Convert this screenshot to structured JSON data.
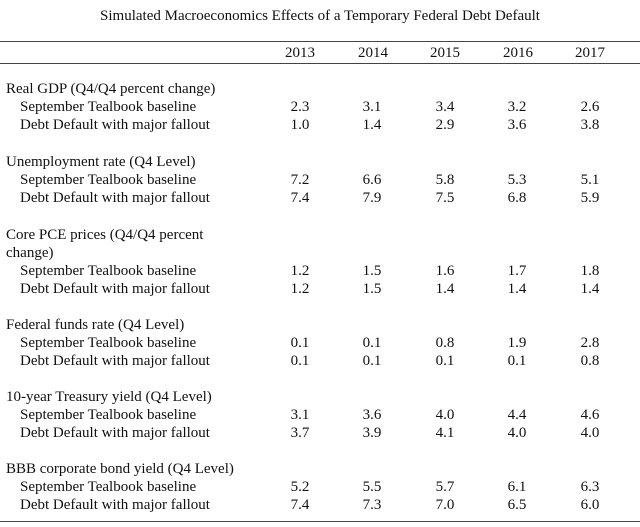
{
  "title": "Simulated Macroeconomics Effects of a Temporary Federal Debt Default",
  "years": [
    "2013",
    "2014",
    "2015",
    "2016",
    "2017"
  ],
  "groups": [
    {
      "heading": "Real GDP (Q4/Q4 percent change)",
      "rows": [
        {
          "label": "September Tealbook baseline",
          "values": [
            "2.3",
            "3.1",
            "3.4",
            "3.2",
            "2.6"
          ]
        },
        {
          "label": "Debt Default with major fallout",
          "values": [
            "1.0",
            "1.4",
            "2.9",
            "3.6",
            "3.8"
          ]
        }
      ]
    },
    {
      "heading": "Unemployment rate (Q4 Level)",
      "rows": [
        {
          "label": "September Tealbook baseline",
          "values": [
            "7.2",
            "6.6",
            "5.8",
            "5.3",
            "5.1"
          ]
        },
        {
          "label": "Debt Default with major fallout",
          "values": [
            "7.4",
            "7.9",
            "7.5",
            "6.8",
            "5.9"
          ]
        }
      ]
    },
    {
      "heading": "Core PCE prices (Q4/Q4 percent change)",
      "rows": [
        {
          "label": "September Tealbook baseline",
          "values": [
            "1.2",
            "1.5",
            "1.6",
            "1.7",
            "1.8"
          ]
        },
        {
          "label": "Debt Default with major fallout",
          "values": [
            "1.2",
            "1.5",
            "1.4",
            "1.4",
            "1.4"
          ]
        }
      ]
    },
    {
      "heading": "Federal funds rate (Q4 Level)",
      "rows": [
        {
          "label": "September Tealbook baseline",
          "values": [
            "0.1",
            "0.1",
            "0.8",
            "1.9",
            "2.8"
          ]
        },
        {
          "label": "Debt Default with major fallout",
          "values": [
            "0.1",
            "0.1",
            "0.1",
            "0.1",
            "0.8"
          ]
        }
      ]
    },
    {
      "heading": "10-year Treasury yield (Q4 Level)",
      "rows": [
        {
          "label": "September Tealbook baseline",
          "values": [
            "3.1",
            "3.6",
            "4.0",
            "4.4",
            "4.6"
          ]
        },
        {
          "label": "Debt Default with major fallout",
          "values": [
            "3.7",
            "3.9",
            "4.1",
            "4.0",
            "4.0"
          ]
        }
      ]
    },
    {
      "heading": "BBB corporate bond yield (Q4 Level)",
      "rows": [
        {
          "label": "September Tealbook baseline",
          "values": [
            "5.2",
            "5.5",
            "5.7",
            "6.1",
            "6.3"
          ]
        },
        {
          "label": "Debt Default with major fallout",
          "values": [
            "7.4",
            "7.3",
            "7.0",
            "6.5",
            "6.0"
          ]
        }
      ]
    }
  ]
}
